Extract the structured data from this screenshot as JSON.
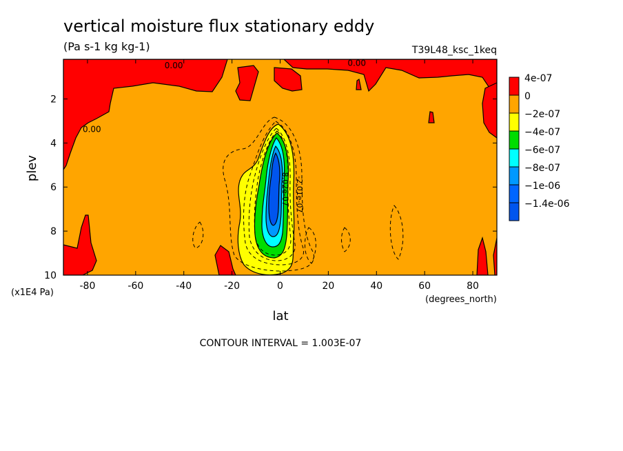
{
  "chart_data": {
    "type": "heatmap",
    "title": "vertical moisture flux stationary eddy",
    "units": "(Pa s-1 kg kg-1)",
    "run_label": "T39L48_ksc_1keq",
    "xlabel": "lat",
    "ylabel": "plev",
    "x_units": "(degrees_north)",
    "y_units": "(x1E4 Pa)",
    "xlim": [
      -90,
      90
    ],
    "ylim": [
      10,
      0.2
    ],
    "xticks": [
      -80,
      -60,
      -40,
      -20,
      0,
      20,
      40,
      60,
      80
    ],
    "xtick_labels": [
      "-80",
      "-60",
      "-40",
      "-20",
      "0",
      "20",
      "40",
      "60",
      "80"
    ],
    "yticks": [
      2,
      4,
      6,
      8,
      10
    ],
    "ytick_labels": [
      "2",
      "4",
      "6",
      "8",
      "10"
    ],
    "legend": [
      {
        "label": "4e-07",
        "color": "#ff0000"
      },
      {
        "label": "0",
        "color": "#ffa500"
      },
      {
        "label": "−2e-07",
        "color": "#ffff00"
      },
      {
        "label": "−4e-07",
        "color": "#00dd00"
      },
      {
        "label": "−6e-07",
        "color": "#00ffff"
      },
      {
        "label": "−8e-07",
        "color": "#0099ff"
      },
      {
        "label": "−1e-06",
        "color": "#0066ff"
      },
      {
        "label": "−1.4e-06",
        "color": "#0055ee"
      }
    ],
    "legend_position": "right",
    "contour_labels": [
      {
        "text": "0.00",
        "lat": -48,
        "plev": 0.6
      },
      {
        "text": "0.00",
        "lat": 28,
        "plev": 0.5
      },
      {
        "text": "0.00",
        "lat": -82,
        "plev": 3.5
      },
      {
        "text": "-2.01e-07",
        "lat": 7,
        "plev": 5.5
      },
      {
        "text": "-8.02e-07",
        "lat": 1,
        "plev": 5.2
      }
    ],
    "contour_interval": "CONTOUR INTERVAL = 1.003E-07",
    "field_features": [
      {
        "desc": "main negative minimum",
        "lat": -3,
        "plev": 6.0,
        "value": -1.4e-06
      },
      {
        "desc": "positive band near top",
        "lat_range": [
          -90,
          90
        ],
        "plev_range": [
          0.2,
          1.5
        ],
        "value": 4e-07
      }
    ]
  }
}
